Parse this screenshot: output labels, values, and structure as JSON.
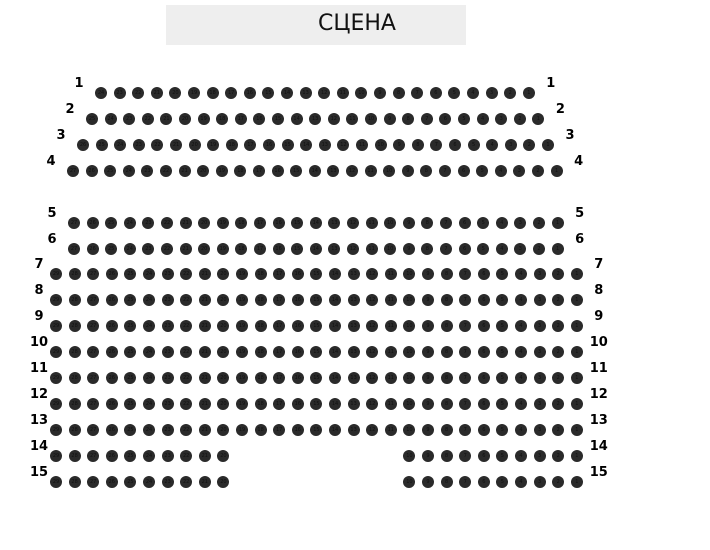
{
  "stage": {
    "label": "СЦЕНА",
    "color": "#eeeeee"
  },
  "seat_color": "#2a2a2a",
  "seat_numbering": "right-to-left",
  "rows": [
    {
      "label": "1",
      "seat_ranges": [
        [
          24,
          1
        ]
      ]
    },
    {
      "label": "2",
      "seat_ranges": [
        [
          25,
          1
        ]
      ]
    },
    {
      "label": "3",
      "seat_ranges": [
        [
          26,
          1
        ]
      ]
    },
    {
      "label": "4",
      "seat_ranges": [
        [
          27,
          1
        ]
      ]
    },
    {
      "label": "5",
      "seat_ranges": [
        [
          27,
          1
        ]
      ]
    },
    {
      "label": "6",
      "seat_ranges": [
        [
          27,
          1
        ]
      ]
    },
    {
      "label": "7",
      "seat_ranges": [
        [
          29,
          1
        ]
      ]
    },
    {
      "label": "8",
      "seat_ranges": [
        [
          29,
          1
        ]
      ]
    },
    {
      "label": "9",
      "seat_ranges": [
        [
          29,
          1
        ]
      ]
    },
    {
      "label": "10",
      "seat_ranges": [
        [
          29,
          1
        ]
      ]
    },
    {
      "label": "11",
      "seat_ranges": [
        [
          29,
          1
        ]
      ]
    },
    {
      "label": "12",
      "seat_ranges": [
        [
          29,
          1
        ]
      ]
    },
    {
      "label": "13",
      "seat_ranges": [
        [
          29,
          1
        ]
      ]
    },
    {
      "label": "14",
      "seat_ranges": [
        [
          29,
          20
        ],
        [
          10,
          1
        ]
      ]
    },
    {
      "label": "15",
      "seat_ranges": [
        [
          29,
          20
        ],
        [
          10,
          1
        ]
      ]
    }
  ]
}
